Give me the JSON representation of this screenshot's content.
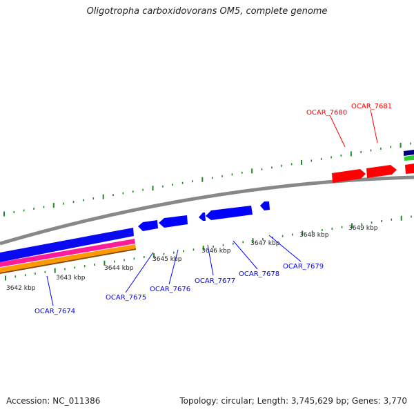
{
  "title": "Oligotropha carboxidovorans OM5, complete genome",
  "footer": {
    "accession": "Accession: NC_011386",
    "topology": "Topology: circular; Length: 3,745,629 bp; Genes: 3,770"
  },
  "colors": {
    "forward_gene": "#ff0000",
    "reverse_gene": "#0000ff",
    "backbone": "#888888",
    "tick": "#228822",
    "tick_label": "#222222"
  },
  "scale": {
    "labels": [
      "3642 kbp",
      "3643 kbp",
      "3644 kbp",
      "3645 kbp",
      "3646 kbp",
      "3647 kbp",
      "3648 kbp",
      "3649 kbp"
    ]
  },
  "gene_labels": {
    "forward": [
      "OCAR_7680",
      "OCAR_7681"
    ],
    "reverse": [
      "OCAR_7674",
      "OCAR_7675",
      "OCAR_7676",
      "OCAR_7677",
      "OCAR_7678",
      "OCAR_7679"
    ]
  }
}
